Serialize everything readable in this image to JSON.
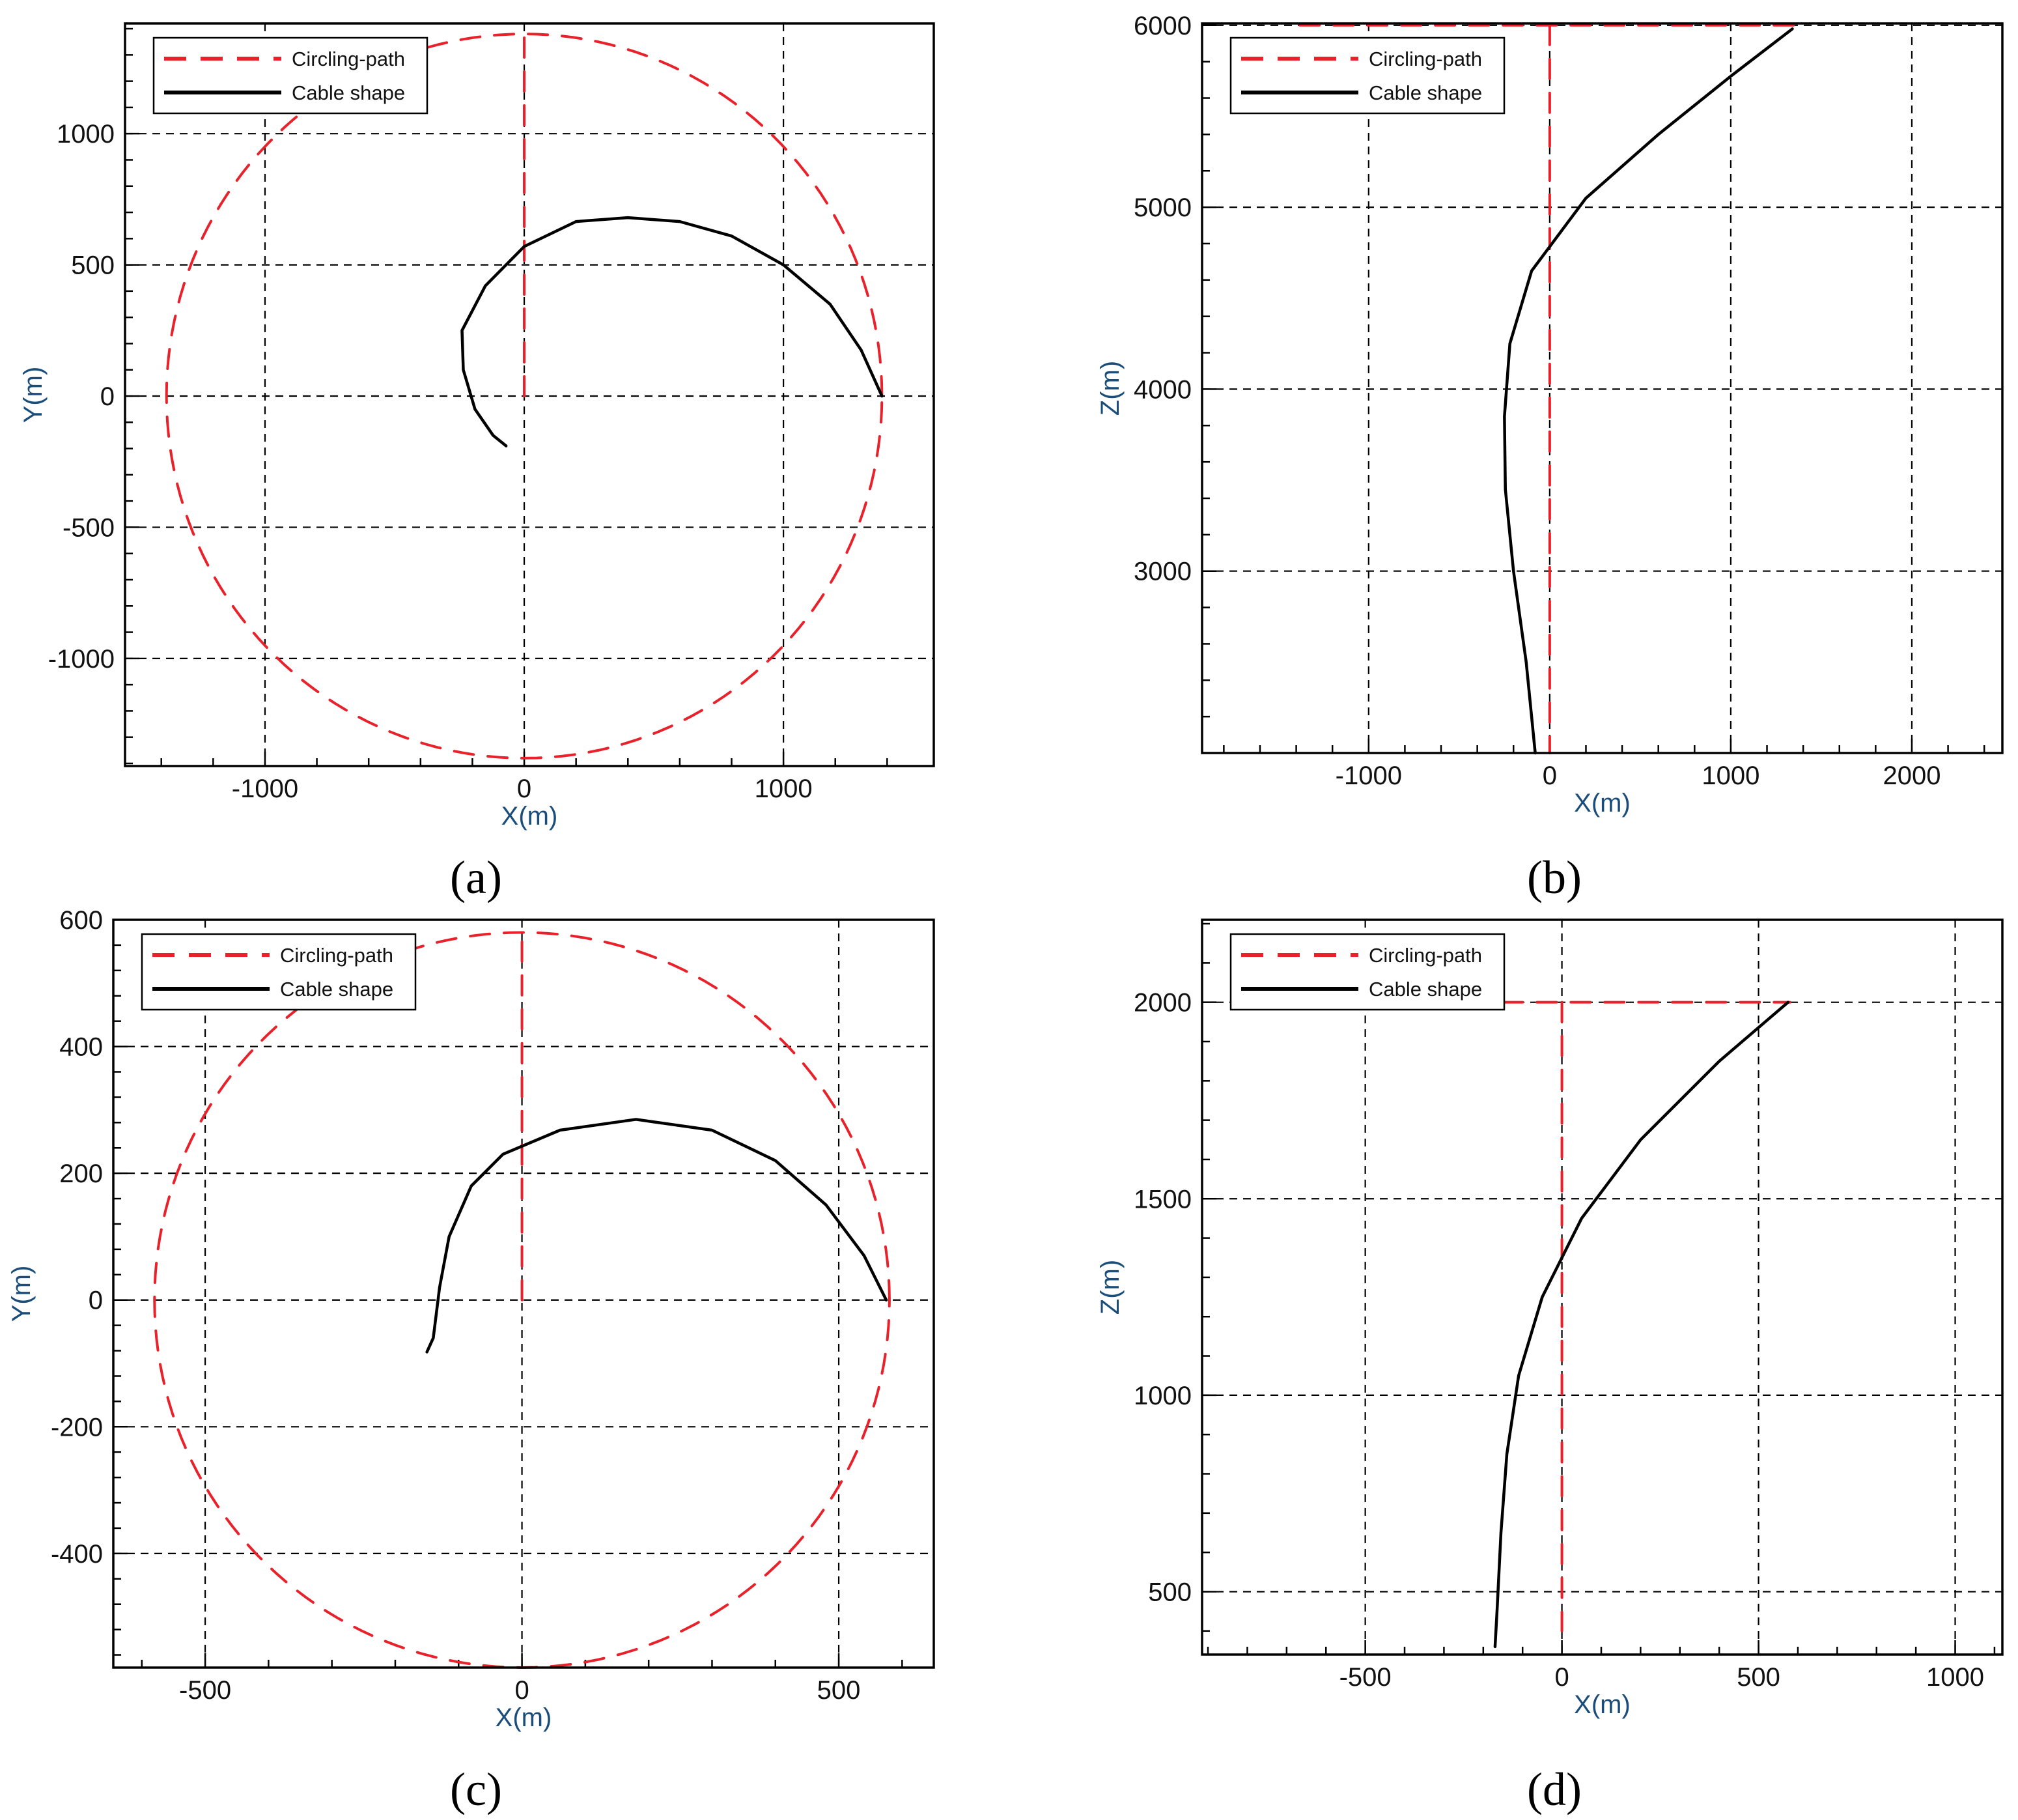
{
  "chart_data": [
    {
      "panel": "(a)",
      "type": "line",
      "xlabel": "X(m)",
      "ylabel": "Y(m)",
      "xlim": [
        -1540,
        1580
      ],
      "ylim": [
        -1410,
        1420
      ],
      "xticks": [
        -1000,
        0,
        1000
      ],
      "yticks": [
        -1000,
        -500,
        0,
        500,
        1000
      ],
      "legend": {
        "position": "top-left",
        "entries": [
          "Circling-path",
          "Cable shape"
        ]
      },
      "grid": true,
      "series": [
        {
          "name": "Circling-path",
          "color": "#e8212a",
          "style": "dashed",
          "shape": "circle-with-radius",
          "radius": 1380,
          "center": [
            0,
            0
          ]
        },
        {
          "name": "Cable shape",
          "color": "#000000",
          "style": "solid",
          "points": [
            [
              1380,
              0
            ],
            [
              1300,
              175
            ],
            [
              1180,
              350
            ],
            [
              1000,
              500
            ],
            [
              800,
              610
            ],
            [
              600,
              665
            ],
            [
              400,
              680
            ],
            [
              200,
              665
            ],
            [
              0,
              570
            ],
            [
              -150,
              420
            ],
            [
              -240,
              250
            ],
            [
              -235,
              100
            ],
            [
              -190,
              -50
            ],
            [
              -120,
              -150
            ],
            [
              -70,
              -190
            ]
          ]
        }
      ]
    },
    {
      "panel": "(b)",
      "type": "line",
      "xlabel": "X(m)",
      "ylabel": "Z(m)",
      "xlim": [
        -1920,
        2500
      ],
      "ylim": [
        2000,
        6010
      ],
      "xticks": [
        -1000,
        0,
        1000,
        2000
      ],
      "yticks": [
        3000,
        4000,
        5000,
        6000
      ],
      "legend": {
        "position": "top-left",
        "entries": [
          "Circling-path",
          "Cable shape"
        ]
      },
      "grid": true,
      "series": [
        {
          "name": "Circling-path",
          "color": "#e8212a",
          "style": "dashed",
          "segments": [
            [
              [
                -1380,
                6000
              ],
              [
                1380,
                6000
              ]
            ],
            [
              [
                0,
                6000
              ],
              [
                0,
                2000
              ]
            ]
          ]
        },
        {
          "name": "Cable shape",
          "color": "#000000",
          "style": "solid",
          "points": [
            [
              1340,
              5980
            ],
            [
              1000,
              5720
            ],
            [
              600,
              5400
            ],
            [
              200,
              5050
            ],
            [
              -100,
              4650
            ],
            [
              -220,
              4250
            ],
            [
              -250,
              3850
            ],
            [
              -245,
              3450
            ],
            [
              -200,
              3000
            ],
            [
              -130,
              2500
            ],
            [
              -80,
              2000
            ]
          ]
        }
      ]
    },
    {
      "panel": "(c)",
      "type": "line",
      "xlabel": "X(m)",
      "ylabel": "Y(m)",
      "xlim": [
        -645,
        650
      ],
      "ylim": [
        -580,
        600
      ],
      "xticks": [
        -500,
        0,
        500
      ],
      "yticks": [
        -400,
        -200,
        0,
        200,
        400,
        600
      ],
      "legend": {
        "position": "top-left",
        "entries": [
          "Circling-path",
          "Cable shape"
        ]
      },
      "grid": true,
      "series": [
        {
          "name": "Circling-path",
          "color": "#e8212a",
          "style": "dashed",
          "shape": "circle-with-radius",
          "radius": 580,
          "center": [
            0,
            0
          ]
        },
        {
          "name": "Cable shape",
          "color": "#000000",
          "style": "solid",
          "points": [
            [
              575,
              0
            ],
            [
              540,
              70
            ],
            [
              480,
              150
            ],
            [
              400,
              220
            ],
            [
              300,
              268
            ],
            [
              180,
              285
            ],
            [
              60,
              268
            ],
            [
              -30,
              230
            ],
            [
              -80,
              180
            ],
            [
              -115,
              100
            ],
            [
              -130,
              20
            ],
            [
              -140,
              -60
            ],
            [
              -150,
              -82
            ]
          ]
        }
      ]
    },
    {
      "panel": "(d)",
      "type": "line",
      "xlabel": "X(m)",
      "ylabel": "Z(m)",
      "xlim": [
        -915,
        1120
      ],
      "ylim": [
        340,
        2210
      ],
      "xticks": [
        -500,
        0,
        500,
        1000
      ],
      "yticks": [
        500,
        1000,
        1500,
        2000
      ],
      "legend": {
        "position": "top-left",
        "entries": [
          "Circling-path",
          "Cable shape"
        ]
      },
      "grid": true,
      "series": [
        {
          "name": "Circling-path",
          "color": "#e8212a",
          "style": "dashed",
          "segments": [
            [
              [
                -580,
                2000
              ],
              [
                580,
                2000
              ]
            ],
            [
              [
                0,
                2000
              ],
              [
                0,
                400
              ]
            ]
          ]
        },
        {
          "name": "Cable shape",
          "color": "#000000",
          "style": "solid",
          "points": [
            [
              575,
              2000
            ],
            [
              400,
              1850
            ],
            [
              200,
              1650
            ],
            [
              50,
              1450
            ],
            [
              -50,
              1250
            ],
            [
              -110,
              1050
            ],
            [
              -140,
              850
            ],
            [
              -155,
              650
            ],
            [
              -165,
              450
            ],
            [
              -170,
              360
            ]
          ]
        }
      ]
    }
  ],
  "panel_labels": [
    "(a)",
    "(b)",
    "(c)",
    "(d)"
  ]
}
